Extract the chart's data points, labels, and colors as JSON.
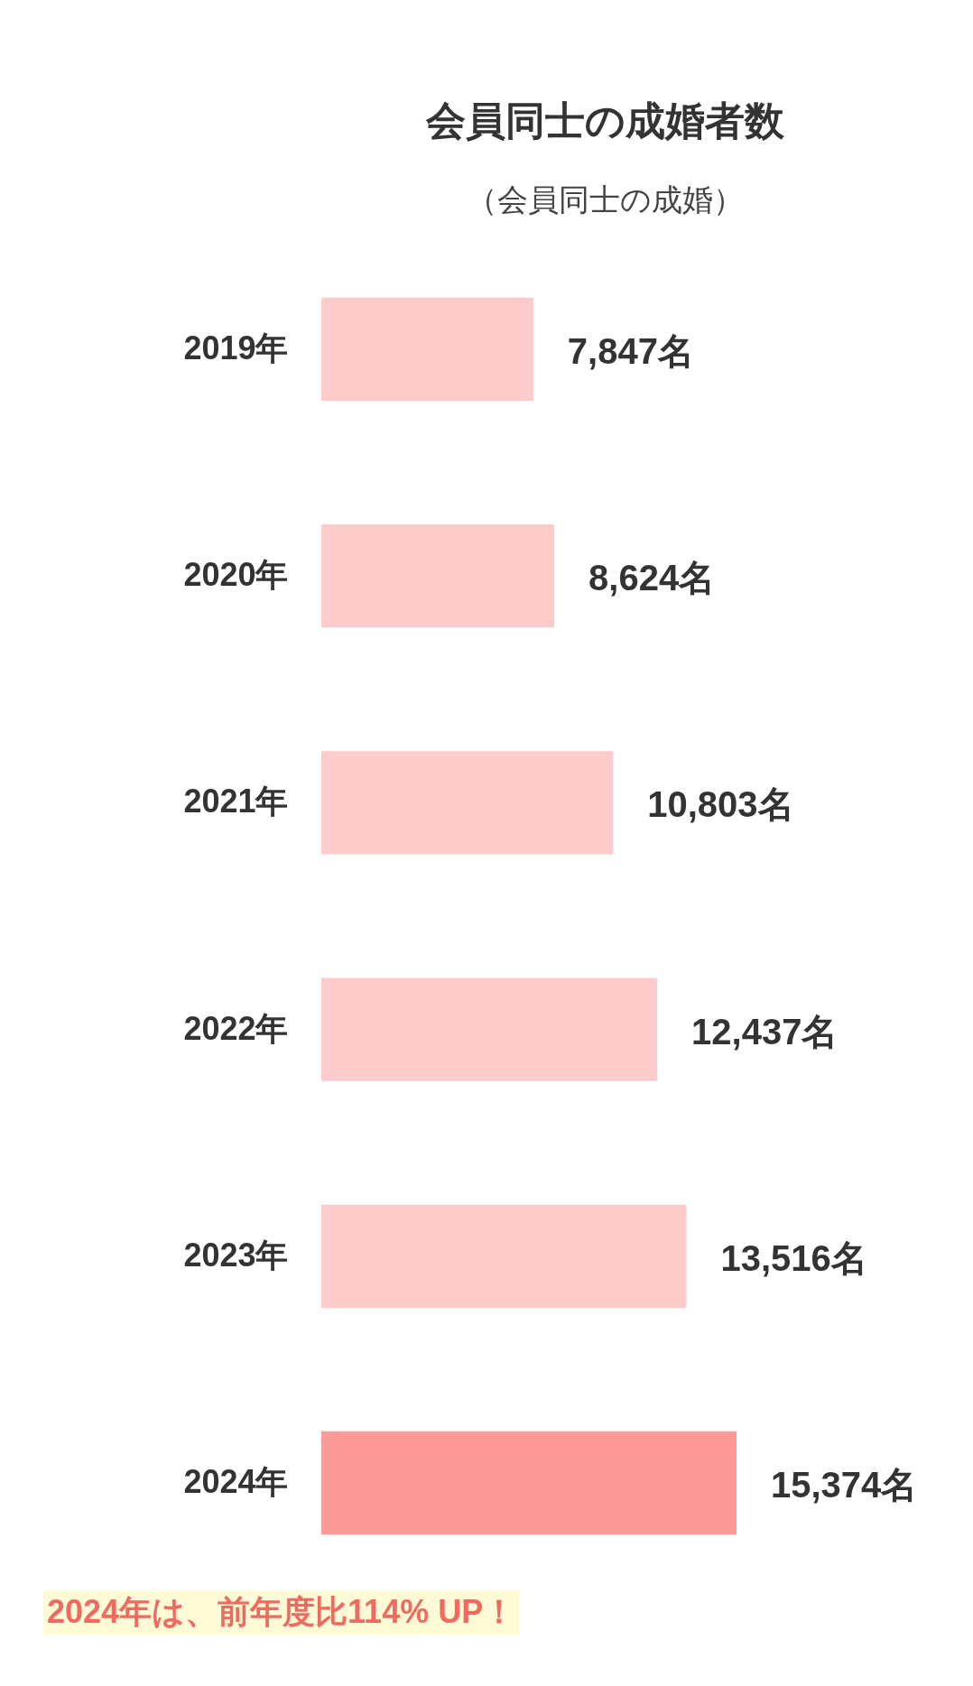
{
  "chart_data": {
    "type": "bar",
    "orientation": "horizontal",
    "title": "会員同士の成婚者数",
    "subtitle": "（会員同士の成婚）",
    "categories": [
      "2019年",
      "2020年",
      "2021年",
      "2022年",
      "2023年",
      "2024年"
    ],
    "values": [
      7847,
      8624,
      10803,
      12437,
      13516,
      15374
    ],
    "colors": [
      "#fecbcb",
      "#fecbcb",
      "#fecbcb",
      "#fecbcb",
      "#fecbcb",
      "#fc9a9a"
    ],
    "value_labels": [
      "7,847名",
      "8,624名",
      "10,803名",
      "12,437名",
      "13,516名",
      "15,374名"
    ],
    "tick_labels": "y",
    "annotations": [
      "2024年は、前年度比114% UP！"
    ]
  }
}
